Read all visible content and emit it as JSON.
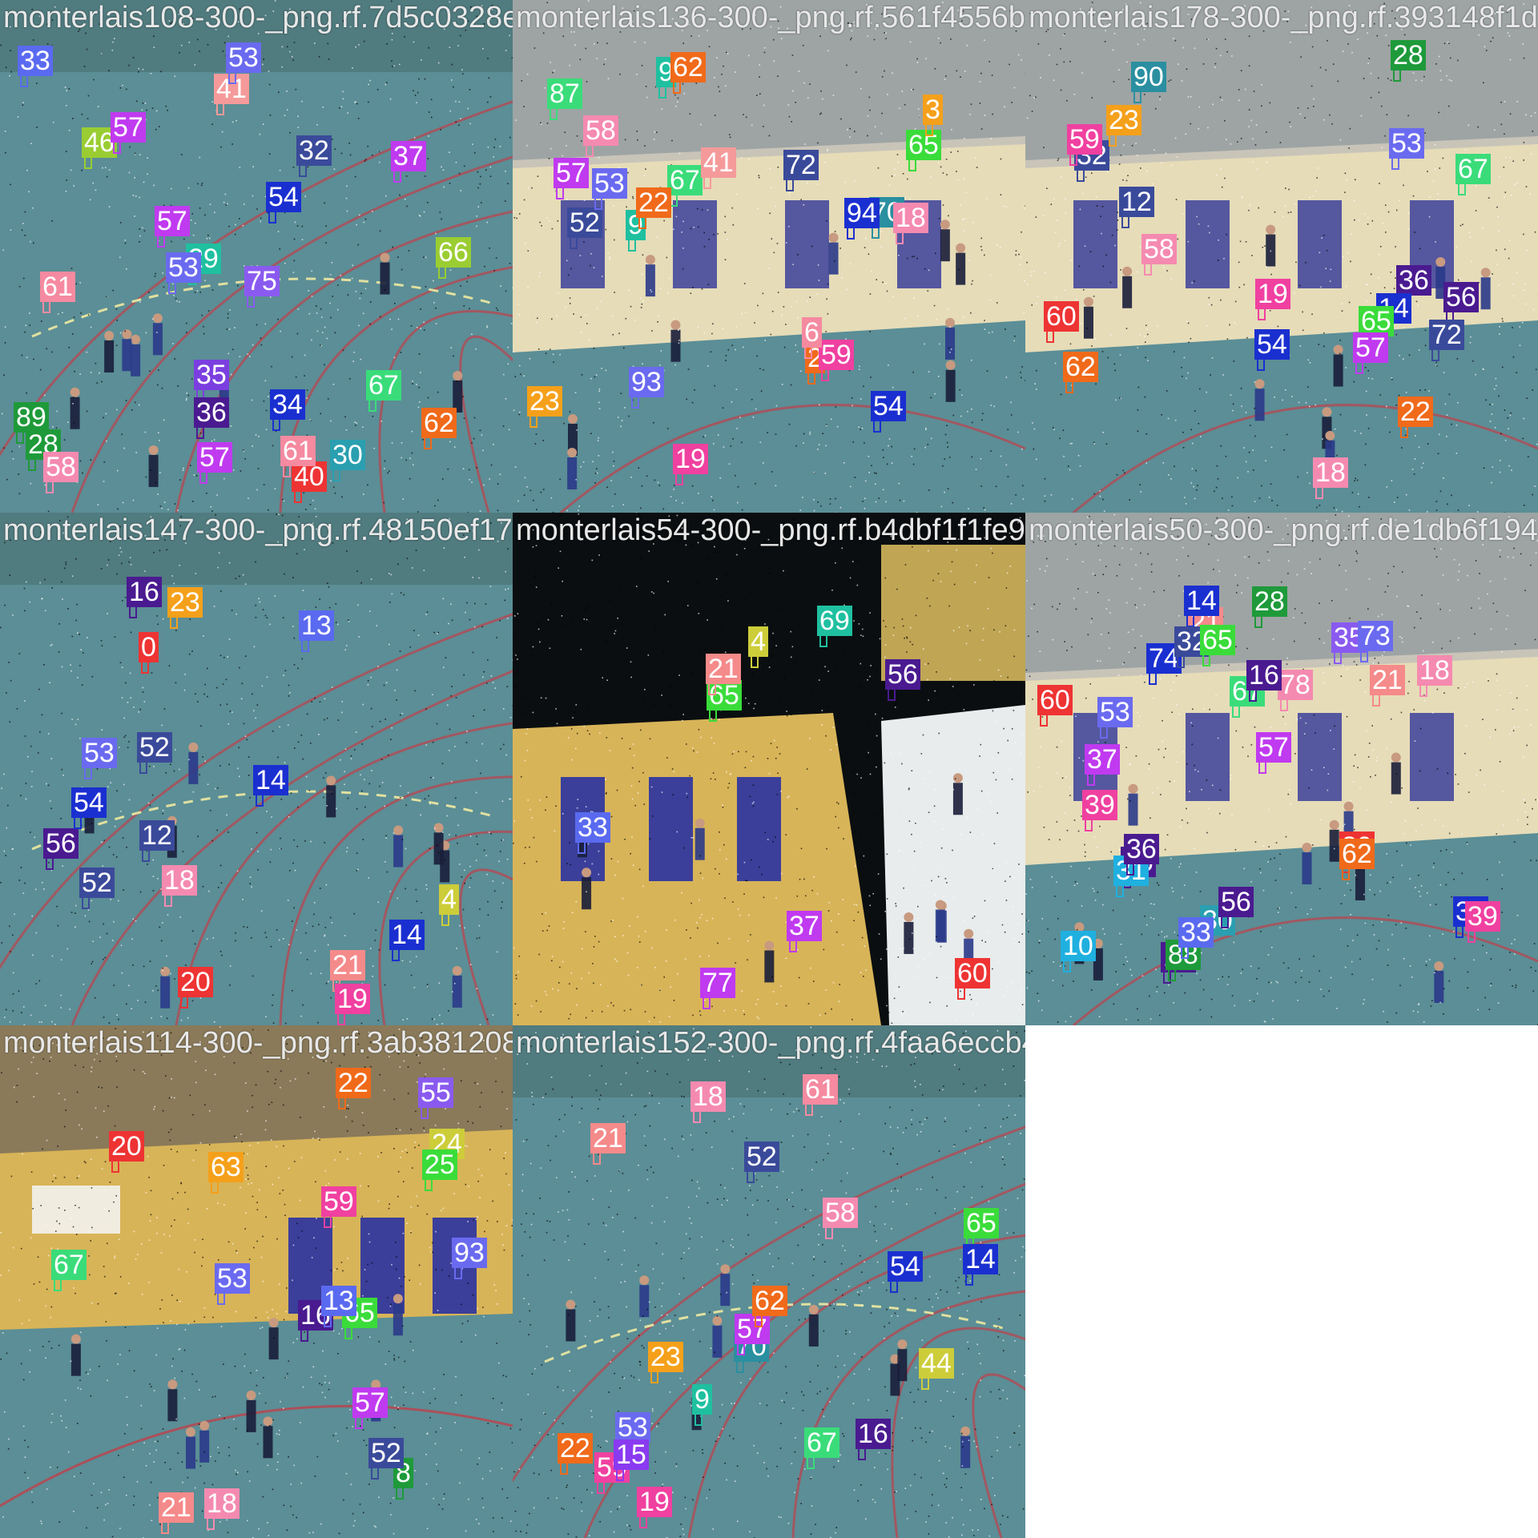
{
  "colors": {
    "court_blue": "#5b8e96",
    "court_line_red": "#c0404a",
    "wall_cream": "#e6dcb8",
    "wall_yellow": "#d8b458",
    "door_blue": "#3b3f9a",
    "dark_void": "#0a0e10"
  },
  "tiles": [
    {
      "filename": "monterlais108-300-_png.rf.7d5c0328e0d4",
      "scene": "court-blue",
      "tags": [
        {
          "n": "35",
          "c": "#7b3fe0"
        },
        {
          "n": "30",
          "c": "#2a9fb0"
        },
        {
          "n": "34",
          "c": "#1a2fd0"
        },
        {
          "n": "36",
          "c": "#4a1a90"
        },
        {
          "n": "40",
          "c": "#ee3333"
        },
        {
          "n": "32",
          "c": "#3a4a9a"
        },
        {
          "n": "75",
          "c": "#8a5af0"
        },
        {
          "n": "57",
          "c": "#c03af0"
        },
        {
          "n": "41",
          "c": "#f59a9a"
        },
        {
          "n": "61",
          "c": "#f58aa0"
        },
        {
          "n": "53",
          "c": "#6a6af0"
        },
        {
          "n": "37",
          "c": "#c03af0"
        },
        {
          "n": "28",
          "c": "#1e9a3a"
        },
        {
          "n": "33",
          "c": "#5a6af0"
        },
        {
          "n": "29",
          "c": "#1fc0a0"
        },
        {
          "n": "46",
          "c": "#9acd32"
        },
        {
          "n": "66",
          "c": "#9acd32"
        },
        {
          "n": "62",
          "c": "#f06a1a"
        },
        {
          "n": "61",
          "c": "#f58aa0"
        },
        {
          "n": "67",
          "c": "#3adc7a"
        },
        {
          "n": "89",
          "c": "#1e9a3a"
        },
        {
          "n": "58",
          "c": "#f58ab0"
        },
        {
          "n": "57",
          "c": "#c03af0"
        },
        {
          "n": "53",
          "c": "#6a6af0"
        },
        {
          "n": "54",
          "c": "#1a2fd0"
        },
        {
          "n": "57",
          "c": "#c03af0"
        }
      ]
    },
    {
      "filename": "monterlais136-300-_png.rf.561f4556b27035",
      "scene": "hall-cream",
      "tags": [
        {
          "n": "23",
          "c": "#f5a01a"
        },
        {
          "n": "19",
          "c": "#f040a0"
        },
        {
          "n": "2",
          "c": "#f06a1a"
        },
        {
          "n": "9",
          "c": "#1fc0a0"
        },
        {
          "n": "93",
          "c": "#6a6af0"
        },
        {
          "n": "52",
          "c": "#3a4a9a"
        },
        {
          "n": "59",
          "c": "#f040a0"
        },
        {
          "n": "67",
          "c": "#3adc7a"
        },
        {
          "n": "65",
          "c": "#3adc3a"
        },
        {
          "n": "9",
          "c": "#1fc0a0"
        },
        {
          "n": "57",
          "c": "#c03af0"
        },
        {
          "n": "6",
          "c": "#f58aa0"
        },
        {
          "n": "53",
          "c": "#6a6af0"
        },
        {
          "n": "70",
          "c": "#2a8fa0"
        },
        {
          "n": "62",
          "c": "#f06a1a"
        },
        {
          "n": "58",
          "c": "#f58ab0"
        },
        {
          "n": "22",
          "c": "#f06a1a"
        },
        {
          "n": "54",
          "c": "#1a2fd0"
        },
        {
          "n": "18",
          "c": "#f58ab0"
        },
        {
          "n": "72",
          "c": "#3a4a9a"
        },
        {
          "n": "41",
          "c": "#f59a9a"
        },
        {
          "n": "87",
          "c": "#3adc7a"
        },
        {
          "n": "94",
          "c": "#1a2fd0"
        },
        {
          "n": "3",
          "c": "#f5a01a"
        }
      ]
    },
    {
      "filename": "monterlais178-300-_png.rf.393148f1d",
      "scene": "hall-cream",
      "tags": [
        {
          "n": "36",
          "c": "#4a1a90"
        },
        {
          "n": "32",
          "c": "#3a4a9a"
        },
        {
          "n": "28",
          "c": "#1e9a3a"
        },
        {
          "n": "12",
          "c": "#3a4a9a"
        },
        {
          "n": "14",
          "c": "#1a2fd0"
        },
        {
          "n": "18",
          "c": "#f58ab0"
        },
        {
          "n": "56",
          "c": "#4a1a90"
        },
        {
          "n": "60",
          "c": "#ee3333"
        },
        {
          "n": "59",
          "c": "#f040a0"
        },
        {
          "n": "67",
          "c": "#3adc7a"
        },
        {
          "n": "65",
          "c": "#3adc3a"
        },
        {
          "n": "53",
          "c": "#6a6af0"
        },
        {
          "n": "57",
          "c": "#c03af0"
        },
        {
          "n": "62",
          "c": "#f06a1a"
        },
        {
          "n": "22",
          "c": "#f06a1a"
        },
        {
          "n": "58",
          "c": "#f58ab0"
        },
        {
          "n": "54",
          "c": "#1a2fd0"
        },
        {
          "n": "23",
          "c": "#f5a01a"
        },
        {
          "n": "19",
          "c": "#f040a0"
        },
        {
          "n": "90",
          "c": "#2a8fa0"
        },
        {
          "n": "72",
          "c": "#3a4a9a"
        }
      ]
    },
    {
      "filename": "monterlais147-300-_png.rf.48150ef17e0f",
      "scene": "court-blue",
      "tags": [
        {
          "n": "56",
          "c": "#4a1a90"
        },
        {
          "n": "52",
          "c": "#3a4a9a"
        },
        {
          "n": "54",
          "c": "#1a2fd0"
        },
        {
          "n": "53",
          "c": "#6a6af0"
        },
        {
          "n": "21",
          "c": "#f58a8a"
        },
        {
          "n": "0",
          "c": "#ee3333"
        },
        {
          "n": "13",
          "c": "#5a6af0"
        },
        {
          "n": "20",
          "c": "#ee3333"
        },
        {
          "n": "4",
          "c": "#cdcd3a"
        },
        {
          "n": "16",
          "c": "#4a1a90"
        },
        {
          "n": "23",
          "c": "#f5a01a"
        },
        {
          "n": "12",
          "c": "#3a4a9a"
        },
        {
          "n": "18",
          "c": "#f58ab0"
        },
        {
          "n": "19",
          "c": "#f040a0"
        },
        {
          "n": "14",
          "c": "#1a2fd0"
        },
        {
          "n": "52",
          "c": "#3a4a9a"
        },
        {
          "n": "14",
          "c": "#1a2fd0"
        }
      ]
    },
    {
      "filename": "monterlais54-300-_png.rf.b4dbf1f1fe912",
      "scene": "dark-void",
      "tags": [
        {
          "n": "77",
          "c": "#c03af0"
        },
        {
          "n": "37",
          "c": "#c03af0"
        },
        {
          "n": "33",
          "c": "#5a6af0"
        },
        {
          "n": "60",
          "c": "#ee3333"
        },
        {
          "n": "56",
          "c": "#4a1a90"
        },
        {
          "n": "69",
          "c": "#1fc0a0"
        },
        {
          "n": "65",
          "c": "#3adc3a"
        },
        {
          "n": "21",
          "c": "#f58a8a"
        },
        {
          "n": "4",
          "c": "#cdcd3a"
        }
      ]
    },
    {
      "filename": "monterlais50-300-_png.rf.de1db6f194",
      "scene": "hall-cream",
      "tags": [
        {
          "n": "56",
          "c": "#4a1a90"
        },
        {
          "n": "21",
          "c": "#f58a8a"
        },
        {
          "n": "16",
          "c": "#4a1a90"
        },
        {
          "n": "18",
          "c": "#f58ab0"
        },
        {
          "n": "14",
          "c": "#1a2fd0"
        },
        {
          "n": "31",
          "c": "#1fb0e0"
        },
        {
          "n": "35",
          "c": "#8a5af0"
        },
        {
          "n": "39",
          "c": "#f040a0"
        },
        {
          "n": "73",
          "c": "#6a6af0"
        },
        {
          "n": "10",
          "c": "#1fb0e0"
        },
        {
          "n": "80",
          "c": "#ee3333"
        },
        {
          "n": "88",
          "c": "#1e9a3a"
        },
        {
          "n": "30",
          "c": "#2a9fb0"
        },
        {
          "n": "34",
          "c": "#1a2fd0"
        },
        {
          "n": "74",
          "c": "#1a2fd0"
        },
        {
          "n": "78",
          "c": "#f58ab0"
        },
        {
          "n": "36",
          "c": "#4a1a90"
        },
        {
          "n": "32",
          "c": "#3a4a9a"
        },
        {
          "n": "28",
          "c": "#1e9a3a"
        },
        {
          "n": "37",
          "c": "#c03af0"
        },
        {
          "n": "33",
          "c": "#5a6af0"
        },
        {
          "n": "60",
          "c": "#ee3333"
        },
        {
          "n": "56",
          "c": "#4a1a90"
        },
        {
          "n": "67",
          "c": "#3adc7a"
        },
        {
          "n": "65",
          "c": "#3adc3a"
        },
        {
          "n": "39",
          "c": "#f040a0"
        },
        {
          "n": "57",
          "c": "#c03af0"
        },
        {
          "n": "53",
          "c": "#6a6af0"
        },
        {
          "n": "21",
          "c": "#f58a8a"
        },
        {
          "n": "62",
          "c": "#f06a1a"
        },
        {
          "n": "16",
          "c": "#4a1a90"
        }
      ]
    },
    {
      "filename": "monterlais114-300-_png.rf.3ab381208b1622",
      "scene": "hall-yellow",
      "tags": [
        {
          "n": "93",
          "c": "#6a6af0"
        },
        {
          "n": "67",
          "c": "#3adc7a"
        },
        {
          "n": "63",
          "c": "#f5a01a"
        },
        {
          "n": "65",
          "c": "#3adc3a"
        },
        {
          "n": "8",
          "c": "#1e9a3a"
        },
        {
          "n": "59",
          "c": "#f040a0"
        },
        {
          "n": "55",
          "c": "#8a5af0"
        },
        {
          "n": "52",
          "c": "#3a4a9a"
        },
        {
          "n": "24",
          "c": "#cdcd3a"
        },
        {
          "n": "57",
          "c": "#c03af0"
        },
        {
          "n": "21",
          "c": "#f58a8a"
        },
        {
          "n": "53",
          "c": "#6a6af0"
        },
        {
          "n": "25",
          "c": "#3adc3a"
        },
        {
          "n": "20",
          "c": "#ee3333"
        },
        {
          "n": "22",
          "c": "#f06a1a"
        },
        {
          "n": "16",
          "c": "#4a1a90"
        },
        {
          "n": "18",
          "c": "#f58ab0"
        },
        {
          "n": "13",
          "c": "#5a6af0"
        }
      ]
    },
    {
      "filename": "monterlais152-300-_png.rf.4faa6eccb44498",
      "scene": "court-blue",
      "tags": [
        {
          "n": "67",
          "c": "#3adc7a"
        },
        {
          "n": "9",
          "c": "#1fc0a0"
        },
        {
          "n": "2",
          "c": "#f06a1a"
        },
        {
          "n": "59",
          "c": "#f040a0"
        },
        {
          "n": "52",
          "c": "#3a4a9a"
        },
        {
          "n": "21",
          "c": "#f58a8a"
        },
        {
          "n": "70",
          "c": "#2a8fa0"
        },
        {
          "n": "65",
          "c": "#3adc3a"
        },
        {
          "n": "61",
          "c": "#f58aa0"
        },
        {
          "n": "57",
          "c": "#c03af0"
        },
        {
          "n": "62",
          "c": "#f06a1a"
        },
        {
          "n": "53",
          "c": "#6a6af0"
        },
        {
          "n": "16",
          "c": "#4a1a90"
        },
        {
          "n": "58",
          "c": "#f58ab0"
        },
        {
          "n": "22",
          "c": "#f06a1a"
        },
        {
          "n": "54",
          "c": "#1a2fd0"
        },
        {
          "n": "18",
          "c": "#f58ab0"
        },
        {
          "n": "23",
          "c": "#f5a01a"
        },
        {
          "n": "14",
          "c": "#1a2fd0"
        },
        {
          "n": "19",
          "c": "#f040a0"
        },
        {
          "n": "15",
          "c": "#8a3af0"
        },
        {
          "n": "44",
          "c": "#cdcd3a"
        }
      ]
    }
  ]
}
